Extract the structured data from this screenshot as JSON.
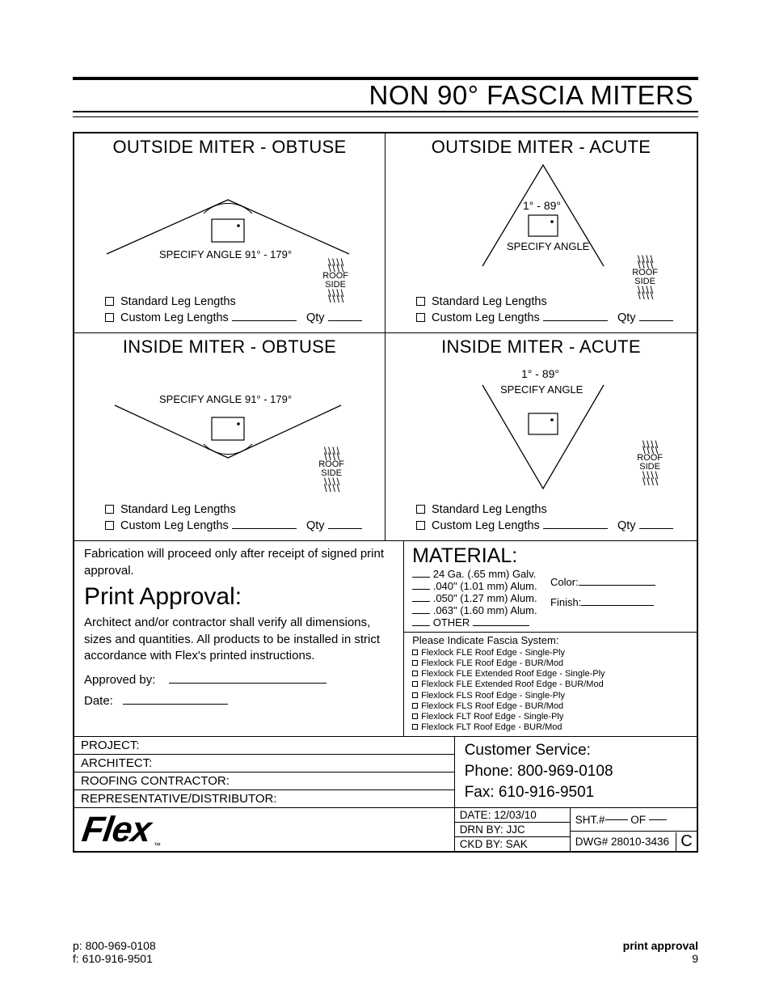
{
  "title": "NON 90° FASCIA MITERS",
  "cells": {
    "out_obtuse": {
      "title": "OUTSIDE MITER - OBTUSE",
      "spec": "SPECIFY ANGLE 91° - 179°",
      "roof": "ROOF",
      "side": "SIDE"
    },
    "out_acute": {
      "title": "OUTSIDE MITER - ACUTE",
      "angle": "1° - 89°",
      "spec": "SPECIFY ANGLE",
      "roof": "ROOF",
      "side": "SIDE"
    },
    "in_obtuse": {
      "title": "INSIDE MITER - OBTUSE",
      "spec": "SPECIFY ANGLE 91° - 179°",
      "roof": "ROOF",
      "side": "SIDE"
    },
    "in_acute": {
      "title": "INSIDE MITER - ACUTE",
      "angle": "1° - 89°",
      "spec": "SPECIFY ANGLE",
      "roof": "ROOF",
      "side": "SIDE"
    }
  },
  "checks": {
    "std": "Standard Leg Lengths",
    "custom": "Custom Leg Lengths",
    "qty": "Qty"
  },
  "approval": {
    "note": "Fabrication will proceed only after receipt of signed print approval.",
    "heading": "Print Approval:",
    "body": "Architect and/or contractor shall verify all dimensions, sizes and quantities. All products to be installed in strict accordance with Flex's printed instructions.",
    "approved_by": "Approved by:",
    "date": "Date:"
  },
  "material": {
    "heading": "MATERIAL:",
    "opts": [
      "24 Ga. (.65 mm) Galv.",
      ".040\" (1.01 mm) Alum.",
      ".050\" (1.27 mm) Alum.",
      ".063\" (1.60 mm) Alum.",
      "OTHER"
    ],
    "color": "Color:",
    "finish": "Finish:"
  },
  "fascia": {
    "heading": "Please Indicate Fascia System:",
    "items": [
      "Flexlock FLE Roof Edge - Single-Ply",
      "Flexlock FLE Roof Edge - BUR/Mod",
      "Flexlock FLE Extended Roof Edge - Single-Ply",
      "Flexlock FLE Extended Roof Edge - BUR/Mod",
      "Flexlock FLS Roof Edge - Single-Ply",
      "Flexlock FLS Roof Edge -  BUR/Mod",
      "Flexlock FLT Roof Edge - Single-Ply",
      "Flexlock FLT Roof Edge - BUR/Mod"
    ]
  },
  "info": {
    "project": "PROJECT:",
    "architect": "ARCHITECT:",
    "roofing": "ROOFING CONTRACTOR:",
    "rep": "REPRESENTATIVE/DISTRIBUTOR:"
  },
  "service": {
    "heading": "Customer Service:",
    "phone": "Phone: 800-969-0108",
    "fax": "Fax: 610-916-9501"
  },
  "meta": {
    "date": "DATE: 12/03/10",
    "drn": "DRN BY:  JJC",
    "ckd": "CKD BY: SAK",
    "sht_pre": "SHT.#",
    "sht_of": "OF",
    "dwg": "DWG#  28010-3436",
    "rev": "C"
  },
  "logo": "Flex",
  "footer": {
    "phone": "p: 800-969-0108",
    "fax": "f: 610-916-9501",
    "label": "print approval",
    "page": "9"
  }
}
